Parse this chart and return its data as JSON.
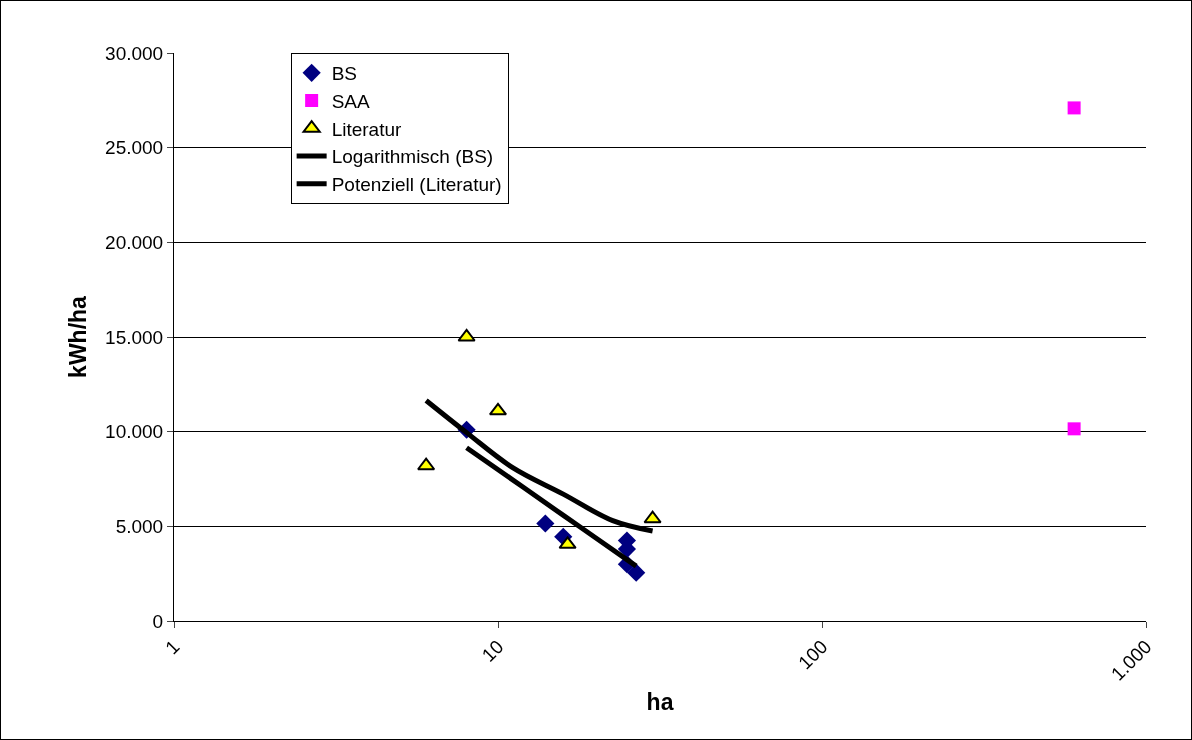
{
  "chart_data": {
    "type": "scatter",
    "xlabel": "ha",
    "ylabel": "kWh/ha",
    "log": "x",
    "grid": "y",
    "legend": "top",
    "xlim": [
      1,
      1000
    ],
    "xticks": [
      1,
      10,
      100,
      {
        "value": 1000,
        "label": "1.000"
      }
    ],
    "ylim": [
      0,
      30000
    ],
    "yticks": [
      0,
      {
        "value": 5000,
        "label": "5.000"
      },
      {
        "value": 10000,
        "label": "10.000"
      },
      {
        "value": 15000,
        "label": "15.000"
      },
      {
        "value": 20000,
        "label": "20.000"
      },
      {
        "value": 25000,
        "label": "25.000"
      },
      {
        "value": 30000,
        "label": "30.000"
      }
    ],
    "series": [
      {
        "name": "BS",
        "marker": "diamond",
        "color": "#000080",
        "x": [
          8,
          14,
          15.9,
          25,
          25,
          25,
          26.7
        ],
        "values": [
          10100,
          5150,
          4450,
          4250,
          3800,
          3000,
          2550
        ]
      },
      {
        "name": "SAA",
        "marker": "square",
        "color": "#ff00ff",
        "x": [
          600,
          600
        ],
        "values": [
          27100,
          10150
        ]
      },
      {
        "name": "Literatur",
        "marker": "triangle",
        "color": "#ffff00",
        "x": [
          8,
          10,
          6,
          16.4,
          30
        ],
        "values": [
          15000,
          11100,
          8200,
          4050,
          5400
        ]
      },
      {
        "name": "Logarithmisch (BS)",
        "type": "line",
        "marker": "none",
        "line_style": "solid",
        "color": "#000000",
        "x": [
          8,
          12,
          16,
          20,
          26.7
        ],
        "values": [
          9150,
          7050,
          5550,
          4400,
          2900
        ]
      },
      {
        "name": "Potenziell (Literatur)",
        "type": "line",
        "marker": "none",
        "line_style": "solid",
        "color": "#000000",
        "x": [
          6,
          8,
          11.1,
          15.9,
          22.6,
          30
        ],
        "values": [
          11650,
          9950,
          8100,
          6700,
          5300,
          4750
        ]
      }
    ]
  }
}
